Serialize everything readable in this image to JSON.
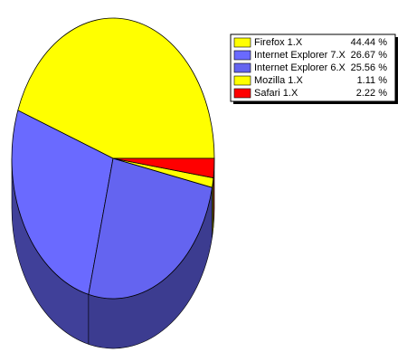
{
  "chart_data": {
    "type": "pie",
    "categories": [
      "Firefox 1.X",
      "Internet Explorer 7.X",
      "Internet Explorer 6.X",
      "Mozilla 1.X",
      "Safari 1.X"
    ],
    "values": [
      44.44,
      26.67,
      25.56,
      1.11,
      2.22
    ],
    "value_labels": [
      "44.44 %",
      "26.67 %",
      "25.56 %",
      "1.11 %",
      "2.22 %"
    ],
    "colors": [
      "#ffff00",
      "#6a6aff",
      "#6464f0",
      "#ffff00",
      "#ff0000"
    ],
    "legend": "top-right"
  }
}
